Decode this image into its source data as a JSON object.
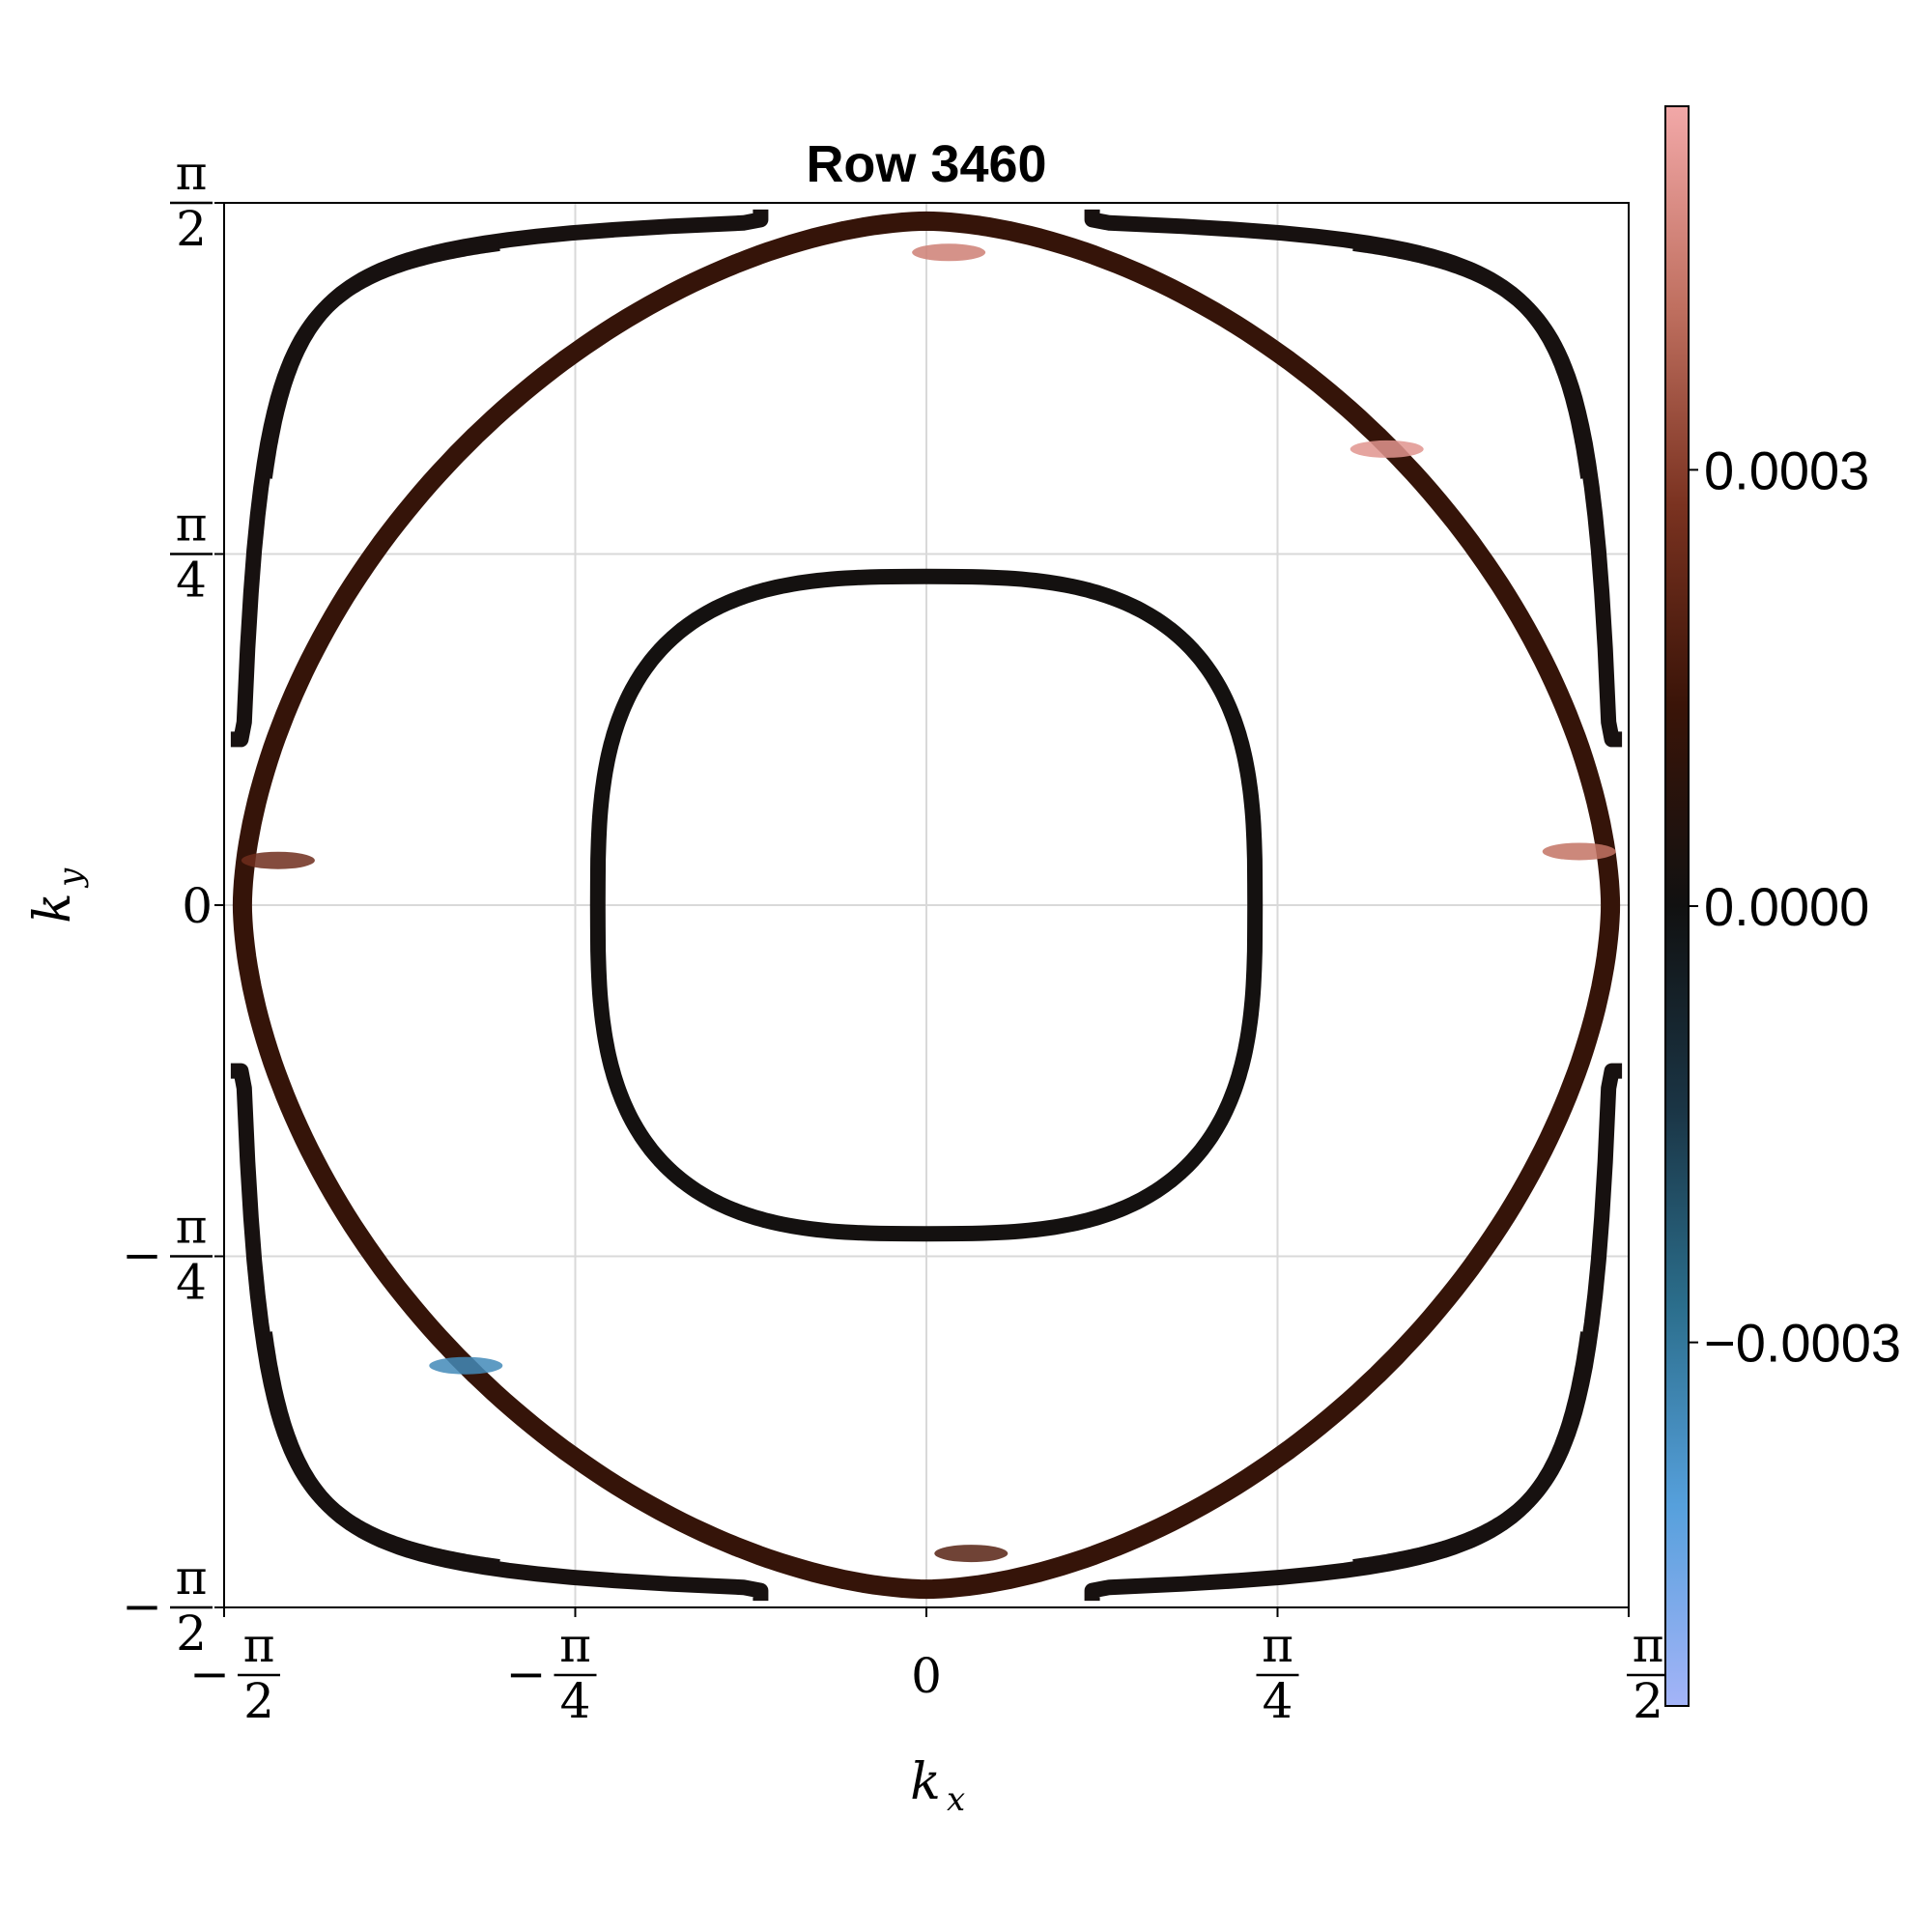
{
  "chart_data": {
    "type": "contour",
    "title": "Row 3460",
    "xlabel": "k_x",
    "ylabel": "k_y",
    "xlim": [
      -1.5708,
      1.5708
    ],
    "ylim": [
      -1.5708,
      1.5708
    ],
    "grid": true,
    "x_ticks": [
      {
        "value": -1.5708,
        "sign": "−",
        "num": "π",
        "den": "2"
      },
      {
        "value": -0.7854,
        "sign": "−",
        "num": "π",
        "den": "4"
      },
      {
        "value": 0,
        "sign": "",
        "num": "0",
        "den": ""
      },
      {
        "value": 0.7854,
        "sign": "",
        "num": "π",
        "den": "4"
      },
      {
        "value": 1.5708,
        "sign": "",
        "num": "π",
        "den": "2"
      }
    ],
    "y_ticks": [
      {
        "value": 1.5708,
        "sign": "",
        "num": "π",
        "den": "2"
      },
      {
        "value": 0.7854,
        "sign": "",
        "num": "π",
        "den": "4"
      },
      {
        "value": 0,
        "sign": "",
        "num": "0",
        "den": ""
      },
      {
        "value": -0.7854,
        "sign": "−",
        "num": "π",
        "den": "4"
      },
      {
        "value": -1.5708,
        "sign": "−",
        "num": "π",
        "den": "2"
      }
    ],
    "colorbar": {
      "range": [
        -0.00055,
        0.00055
      ],
      "ticks": [
        {
          "value": 0.0003,
          "label": "0.0003"
        },
        {
          "value": 0.0,
          "label": "0.0000"
        },
        {
          "value": -0.0003,
          "label": "−0.0003"
        }
      ],
      "stops": [
        "#a4b4f8",
        "#56a0dc",
        "#2b6e8c",
        "#1a3444",
        "#111111",
        "#3a1408",
        "#7a3220",
        "#c07060",
        "#f2a8a8"
      ]
    },
    "contours": [
      {
        "name": "inner",
        "shape": "superellipse",
        "cx": 0,
        "cy": 0,
        "a": 0.735,
        "b": 0.735,
        "n": 3.0,
        "value": 1e-05
      },
      {
        "name": "outer",
        "shape": "superellipse",
        "cx": 0,
        "cy": 0,
        "a": 1.53,
        "b": 1.53,
        "n": 1.75,
        "value": 0.00012
      },
      {
        "name": "corner-top-left",
        "shape": "hyperbola-arc",
        "cx": -1.5708,
        "cy": 1.5708,
        "value": 2e-05
      },
      {
        "name": "corner-top-right",
        "shape": "hyperbola-arc",
        "cx": 1.5708,
        "cy": 1.5708,
        "value": 2e-05
      },
      {
        "name": "corner-bottom-left",
        "shape": "hyperbola-arc",
        "cx": -1.5708,
        "cy": -1.5708,
        "value": 2e-05
      },
      {
        "name": "corner-bottom-right",
        "shape": "hyperbola-arc",
        "cx": 1.5708,
        "cy": -1.5708,
        "value": 2e-05
      }
    ],
    "highlights": [
      {
        "x": 0.05,
        "y": 1.46,
        "value": 0.00045
      },
      {
        "x": 1.03,
        "y": 1.02,
        "value": 0.0005
      },
      {
        "x": 1.46,
        "y": 0.12,
        "value": 0.00042
      },
      {
        "x": -1.45,
        "y": 0.1,
        "value": 0.00025
      },
      {
        "x": -1.03,
        "y": -1.03,
        "value": -0.00035
      },
      {
        "x": 0.1,
        "y": -1.45,
        "value": 0.0002
      }
    ]
  }
}
